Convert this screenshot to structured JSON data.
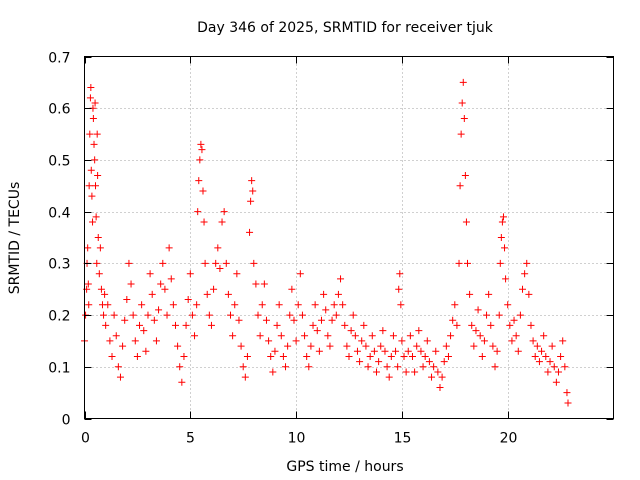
{
  "chart_data": {
    "type": "scatter",
    "title": "Day 346 of 2025, SRMTID for receiver tjuk",
    "xlabel": "GPS time / hours",
    "ylabel": "SRMTID / TECUs",
    "xlim": [
      0,
      25
    ],
    "ylim": [
      0,
      0.7
    ],
    "xticks": [
      0,
      5,
      10,
      15,
      20
    ],
    "yticks": [
      0,
      0.1,
      0.2,
      0.3,
      0.4,
      0.5,
      0.6,
      0.7
    ],
    "xtick_labels": [
      "0",
      "5",
      "10",
      "15",
      "20"
    ],
    "ytick_labels": [
      "0",
      "0.1",
      "0.2",
      "0.3",
      "0.4",
      "0.5",
      "0.6",
      "0.7"
    ],
    "grid": true,
    "marker": "+",
    "color": "#ff0000",
    "series": [
      {
        "name": "SRMTID",
        "points": [
          [
            0.0,
            0.15
          ],
          [
            0.05,
            0.2
          ],
          [
            0.1,
            0.25
          ],
          [
            0.12,
            0.3
          ],
          [
            0.15,
            0.33
          ],
          [
            0.18,
            0.26
          ],
          [
            0.2,
            0.22
          ],
          [
            0.22,
            0.45
          ],
          [
            0.25,
            0.55
          ],
          [
            0.28,
            0.62
          ],
          [
            0.3,
            0.64
          ],
          [
            0.32,
            0.48
          ],
          [
            0.35,
            0.43
          ],
          [
            0.38,
            0.38
          ],
          [
            0.4,
            0.6
          ],
          [
            0.42,
            0.58
          ],
          [
            0.45,
            0.53
          ],
          [
            0.48,
            0.5
          ],
          [
            0.5,
            0.61
          ],
          [
            0.52,
            0.45
          ],
          [
            0.55,
            0.39
          ],
          [
            0.58,
            0.3
          ],
          [
            0.6,
            0.55
          ],
          [
            0.62,
            0.47
          ],
          [
            0.65,
            0.35
          ],
          [
            0.7,
            0.28
          ],
          [
            0.75,
            0.33
          ],
          [
            0.8,
            0.25
          ],
          [
            0.85,
            0.22
          ],
          [
            0.9,
            0.2
          ],
          [
            0.95,
            0.24
          ],
          [
            1.0,
            0.18
          ],
          [
            1.1,
            0.22
          ],
          [
            1.2,
            0.15
          ],
          [
            1.3,
            0.12
          ],
          [
            1.4,
            0.2
          ],
          [
            1.5,
            0.16
          ],
          [
            1.6,
            0.1
          ],
          [
            1.7,
            0.08
          ],
          [
            1.8,
            0.14
          ],
          [
            1.9,
            0.19
          ],
          [
            2.0,
            0.23
          ],
          [
            2.1,
            0.3
          ],
          [
            2.2,
            0.26
          ],
          [
            2.3,
            0.2
          ],
          [
            2.4,
            0.15
          ],
          [
            2.5,
            0.12
          ],
          [
            2.6,
            0.18
          ],
          [
            2.7,
            0.22
          ],
          [
            2.8,
            0.17
          ],
          [
            2.9,
            0.13
          ],
          [
            3.0,
            0.2
          ],
          [
            3.1,
            0.28
          ],
          [
            3.2,
            0.24
          ],
          [
            3.3,
            0.19
          ],
          [
            3.4,
            0.15
          ],
          [
            3.5,
            0.21
          ],
          [
            3.6,
            0.26
          ],
          [
            3.7,
            0.3
          ],
          [
            3.8,
            0.25
          ],
          [
            3.9,
            0.2
          ],
          [
            4.0,
            0.33
          ],
          [
            4.1,
            0.27
          ],
          [
            4.2,
            0.22
          ],
          [
            4.3,
            0.18
          ],
          [
            4.4,
            0.14
          ],
          [
            4.5,
            0.1
          ],
          [
            4.6,
            0.07
          ],
          [
            4.7,
            0.12
          ],
          [
            4.8,
            0.18
          ],
          [
            4.9,
            0.23
          ],
          [
            5.0,
            0.28
          ],
          [
            5.1,
            0.2
          ],
          [
            5.2,
            0.16
          ],
          [
            5.3,
            0.22
          ],
          [
            5.35,
            0.4
          ],
          [
            5.4,
            0.46
          ],
          [
            5.45,
            0.5
          ],
          [
            5.5,
            0.53
          ],
          [
            5.55,
            0.52
          ],
          [
            5.6,
            0.44
          ],
          [
            5.65,
            0.38
          ],
          [
            5.7,
            0.3
          ],
          [
            5.8,
            0.24
          ],
          [
            5.9,
            0.2
          ],
          [
            6.0,
            0.18
          ],
          [
            6.1,
            0.25
          ],
          [
            6.2,
            0.3
          ],
          [
            6.3,
            0.33
          ],
          [
            6.4,
            0.29
          ],
          [
            6.5,
            0.38
          ],
          [
            6.6,
            0.4
          ],
          [
            6.7,
            0.3
          ],
          [
            6.8,
            0.24
          ],
          [
            6.9,
            0.2
          ],
          [
            7.0,
            0.16
          ],
          [
            7.1,
            0.22
          ],
          [
            7.2,
            0.28
          ],
          [
            7.3,
            0.19
          ],
          [
            7.4,
            0.14
          ],
          [
            7.5,
            0.1
          ],
          [
            7.6,
            0.08
          ],
          [
            7.7,
            0.12
          ],
          [
            7.8,
            0.36
          ],
          [
            7.85,
            0.42
          ],
          [
            7.9,
            0.46
          ],
          [
            7.95,
            0.44
          ],
          [
            8.0,
            0.3
          ],
          [
            8.1,
            0.26
          ],
          [
            8.2,
            0.2
          ],
          [
            8.3,
            0.16
          ],
          [
            8.4,
            0.22
          ],
          [
            8.5,
            0.26
          ],
          [
            8.6,
            0.19
          ],
          [
            8.7,
            0.15
          ],
          [
            8.8,
            0.12
          ],
          [
            8.9,
            0.09
          ],
          [
            9.0,
            0.13
          ],
          [
            9.1,
            0.18
          ],
          [
            9.2,
            0.22
          ],
          [
            9.3,
            0.16
          ],
          [
            9.4,
            0.12
          ],
          [
            9.5,
            0.1
          ],
          [
            9.6,
            0.14
          ],
          [
            9.7,
            0.2
          ],
          [
            9.8,
            0.25
          ],
          [
            9.9,
            0.19
          ],
          [
            10.0,
            0.15
          ],
          [
            10.1,
            0.22
          ],
          [
            10.2,
            0.28
          ],
          [
            10.3,
            0.2
          ],
          [
            10.4,
            0.16
          ],
          [
            10.5,
            0.12
          ],
          [
            10.6,
            0.1
          ],
          [
            10.7,
            0.14
          ],
          [
            10.8,
            0.18
          ],
          [
            10.9,
            0.22
          ],
          [
            11.0,
            0.17
          ],
          [
            11.1,
            0.13
          ],
          [
            11.2,
            0.19
          ],
          [
            11.3,
            0.24
          ],
          [
            11.4,
            0.21
          ],
          [
            11.5,
            0.16
          ],
          [
            11.6,
            0.14
          ],
          [
            11.7,
            0.19
          ],
          [
            11.8,
            0.22
          ],
          [
            11.9,
            0.2
          ],
          [
            12.0,
            0.24
          ],
          [
            12.1,
            0.27
          ],
          [
            12.2,
            0.22
          ],
          [
            12.3,
            0.18
          ],
          [
            12.4,
            0.14
          ],
          [
            12.5,
            0.12
          ],
          [
            12.6,
            0.17
          ],
          [
            12.7,
            0.2
          ],
          [
            12.8,
            0.16
          ],
          [
            12.9,
            0.13
          ],
          [
            13.0,
            0.11
          ],
          [
            13.1,
            0.15
          ],
          [
            13.2,
            0.18
          ],
          [
            13.3,
            0.14
          ],
          [
            13.4,
            0.1
          ],
          [
            13.5,
            0.12
          ],
          [
            13.6,
            0.16
          ],
          [
            13.7,
            0.13
          ],
          [
            13.8,
            0.09
          ],
          [
            13.9,
            0.11
          ],
          [
            14.0,
            0.14
          ],
          [
            14.1,
            0.17
          ],
          [
            14.2,
            0.13
          ],
          [
            14.3,
            0.1
          ],
          [
            14.4,
            0.08
          ],
          [
            14.5,
            0.12
          ],
          [
            14.6,
            0.16
          ],
          [
            14.7,
            0.13
          ],
          [
            14.8,
            0.1
          ],
          [
            14.85,
            0.25
          ],
          [
            14.9,
            0.28
          ],
          [
            14.95,
            0.22
          ],
          [
            15.0,
            0.15
          ],
          [
            15.1,
            0.12
          ],
          [
            15.2,
            0.09
          ],
          [
            15.3,
            0.13
          ],
          [
            15.4,
            0.16
          ],
          [
            15.5,
            0.12
          ],
          [
            15.6,
            0.09
          ],
          [
            15.7,
            0.14
          ],
          [
            15.8,
            0.17
          ],
          [
            15.9,
            0.13
          ],
          [
            16.0,
            0.1
          ],
          [
            16.1,
            0.12
          ],
          [
            16.2,
            0.15
          ],
          [
            16.3,
            0.11
          ],
          [
            16.4,
            0.08
          ],
          [
            16.5,
            0.1
          ],
          [
            16.6,
            0.13
          ],
          [
            16.7,
            0.09
          ],
          [
            16.8,
            0.06
          ],
          [
            16.9,
            0.08
          ],
          [
            17.0,
            0.11
          ],
          [
            17.1,
            0.14
          ],
          [
            17.2,
            0.12
          ],
          [
            17.3,
            0.16
          ],
          [
            17.4,
            0.19
          ],
          [
            17.5,
            0.22
          ],
          [
            17.6,
            0.18
          ],
          [
            17.7,
            0.3
          ],
          [
            17.75,
            0.45
          ],
          [
            17.8,
            0.55
          ],
          [
            17.85,
            0.61
          ],
          [
            17.9,
            0.65
          ],
          [
            17.95,
            0.58
          ],
          [
            18.0,
            0.47
          ],
          [
            18.05,
            0.38
          ],
          [
            18.1,
            0.3
          ],
          [
            18.2,
            0.24
          ],
          [
            18.3,
            0.18
          ],
          [
            18.4,
            0.14
          ],
          [
            18.5,
            0.17
          ],
          [
            18.6,
            0.21
          ],
          [
            18.7,
            0.16
          ],
          [
            18.8,
            0.12
          ],
          [
            18.9,
            0.15
          ],
          [
            19.0,
            0.2
          ],
          [
            19.1,
            0.24
          ],
          [
            19.2,
            0.18
          ],
          [
            19.3,
            0.14
          ],
          [
            19.4,
            0.1
          ],
          [
            19.5,
            0.13
          ],
          [
            19.6,
            0.2
          ],
          [
            19.65,
            0.3
          ],
          [
            19.7,
            0.35
          ],
          [
            19.75,
            0.38
          ],
          [
            19.8,
            0.39
          ],
          [
            19.85,
            0.33
          ],
          [
            19.9,
            0.27
          ],
          [
            20.0,
            0.22
          ],
          [
            20.1,
            0.18
          ],
          [
            20.2,
            0.15
          ],
          [
            20.3,
            0.19
          ],
          [
            20.4,
            0.16
          ],
          [
            20.5,
            0.13
          ],
          [
            20.6,
            0.2
          ],
          [
            20.7,
            0.25
          ],
          [
            20.8,
            0.28
          ],
          [
            20.9,
            0.3
          ],
          [
            21.0,
            0.24
          ],
          [
            21.1,
            0.18
          ],
          [
            21.2,
            0.15
          ],
          [
            21.3,
            0.12
          ],
          [
            21.4,
            0.14
          ],
          [
            21.5,
            0.11
          ],
          [
            21.6,
            0.13
          ],
          [
            21.7,
            0.16
          ],
          [
            21.8,
            0.12
          ],
          [
            21.9,
            0.09
          ],
          [
            22.0,
            0.11
          ],
          [
            22.1,
            0.14
          ],
          [
            22.2,
            0.1
          ],
          [
            22.3,
            0.07
          ],
          [
            22.4,
            0.09
          ],
          [
            22.5,
            0.12
          ],
          [
            22.6,
            0.15
          ],
          [
            22.7,
            0.1
          ],
          [
            22.8,
            0.05
          ],
          [
            22.85,
            0.03
          ]
        ]
      }
    ]
  }
}
